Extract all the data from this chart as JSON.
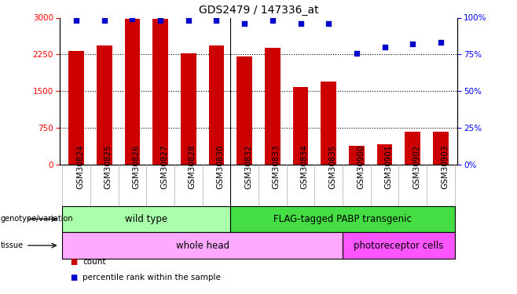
{
  "title": "GDS2479 / 147336_at",
  "samples": [
    "GSM30824",
    "GSM30825",
    "GSM30826",
    "GSM30827",
    "GSM30828",
    "GSM30830",
    "GSM30832",
    "GSM30833",
    "GSM30834",
    "GSM30835",
    "GSM30900",
    "GSM30901",
    "GSM30902",
    "GSM30903"
  ],
  "counts": [
    2320,
    2440,
    2980,
    2970,
    2280,
    2440,
    2210,
    2390,
    1590,
    1700,
    390,
    420,
    670,
    670
  ],
  "percentiles": [
    98,
    98,
    99,
    98,
    98,
    98,
    96,
    98,
    96,
    96,
    76,
    80,
    82,
    83
  ],
  "ylim_left": [
    0,
    3000
  ],
  "ylim_right": [
    0,
    100
  ],
  "yticks_left": [
    0,
    750,
    1500,
    2250,
    3000
  ],
  "yticks_right": [
    0,
    25,
    50,
    75,
    100
  ],
  "bar_color": "#cc0000",
  "dot_color": "#0000cc",
  "bar_width": 0.55,
  "separator_after_index": 5,
  "genotype_groups": [
    {
      "label": "wild type",
      "start": 0,
      "end": 6,
      "color": "#aaffaa"
    },
    {
      "label": "FLAG-tagged PABP transgenic",
      "start": 6,
      "end": 14,
      "color": "#44dd44"
    }
  ],
  "tissue_groups": [
    {
      "label": "whole head",
      "start": 0,
      "end": 10,
      "color": "#ffaaff"
    },
    {
      "label": "photoreceptor cells",
      "start": 10,
      "end": 14,
      "color": "#ff55ff"
    }
  ],
  "legend_items": [
    {
      "color": "#cc0000",
      "label": "count"
    },
    {
      "color": "#0000cc",
      "label": "percentile rank within the sample"
    }
  ],
  "label_fontsize": 8.5,
  "tick_fontsize": 7.5,
  "title_fontsize": 10,
  "xtick_bg_color": "#cccccc",
  "fig_width": 6.58,
  "fig_height": 3.75
}
